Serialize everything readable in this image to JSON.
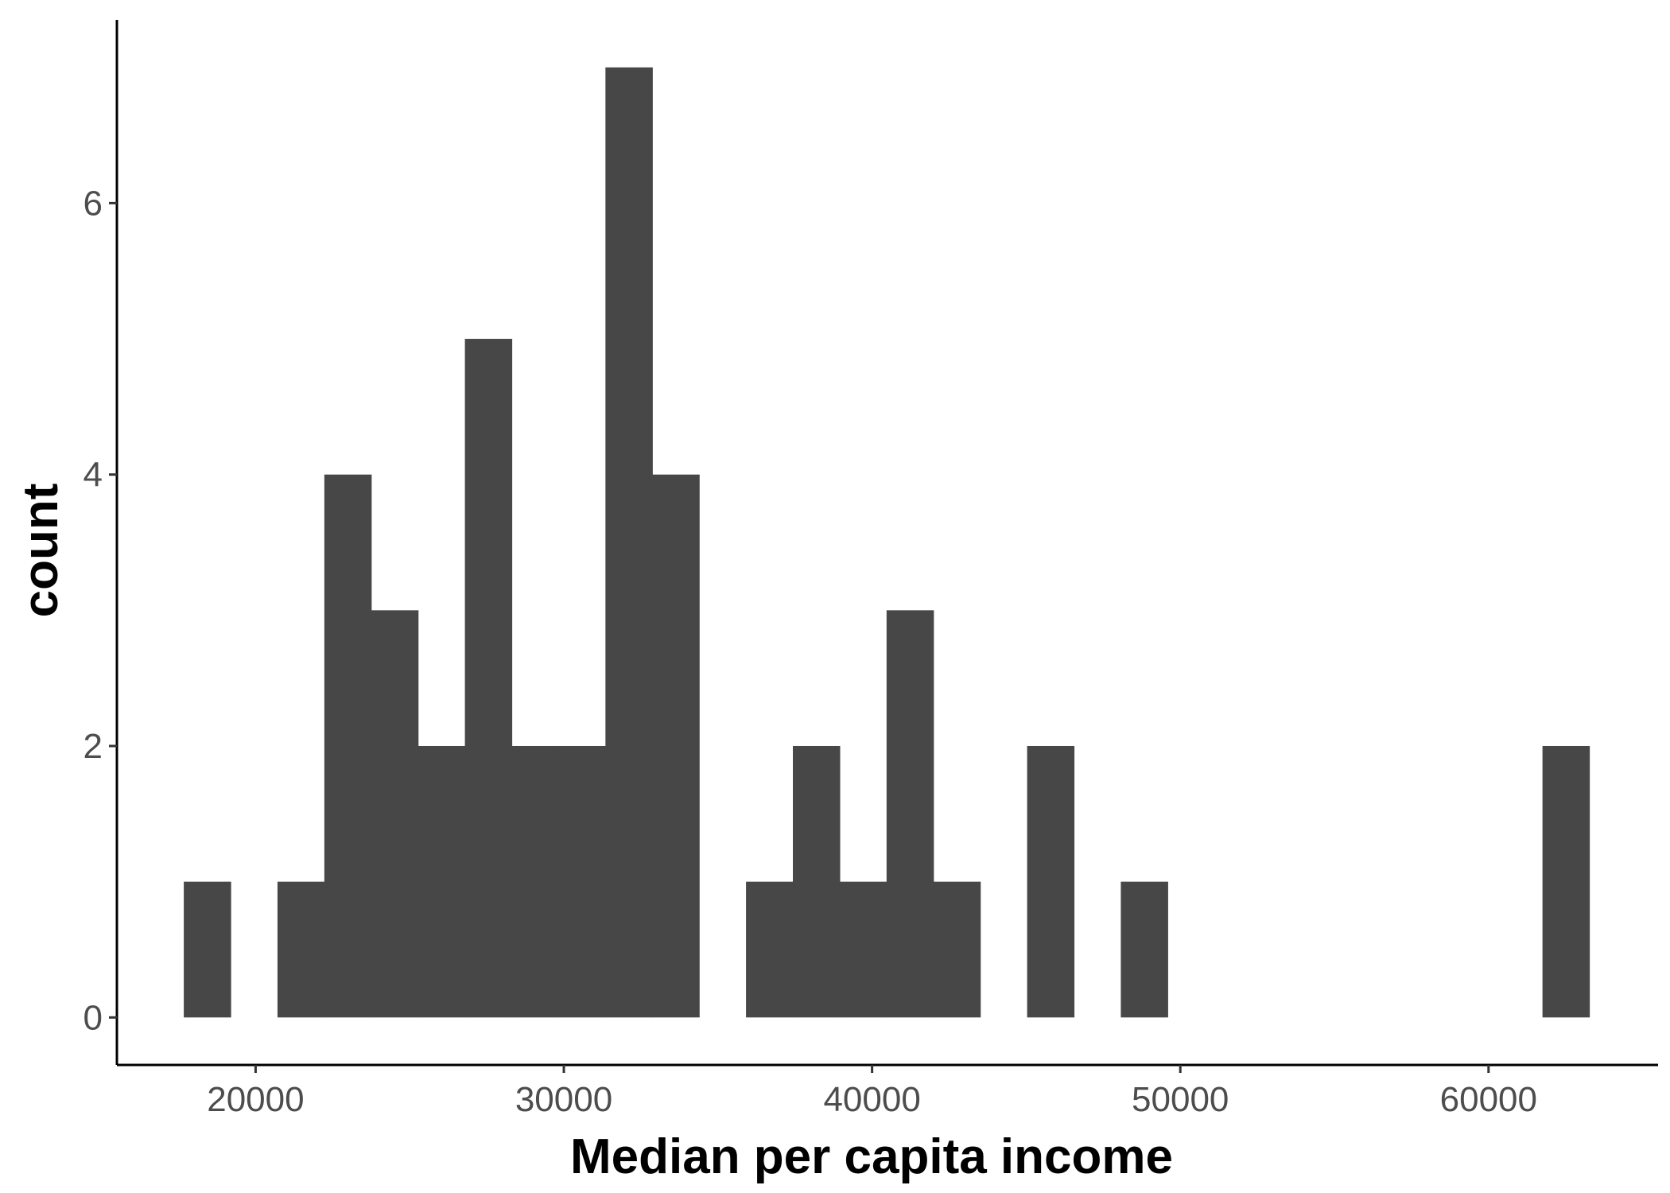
{
  "chart_data": {
    "type": "bar",
    "subtype": "histogram",
    "title": "",
    "xlabel": "Median per capita income",
    "ylabel": "count",
    "xlim": [
      15500,
      65500
    ],
    "ylim": [
      -0.35,
      7.35
    ],
    "x_ticks": [
      20000,
      30000,
      40000,
      50000,
      60000
    ],
    "x_tick_labels": [
      "20000",
      "30000",
      "40000",
      "50000",
      "60000"
    ],
    "y_ticks": [
      0,
      2,
      4,
      6
    ],
    "y_tick_labels": [
      "0",
      "2",
      "4",
      "6"
    ],
    "bin_width": 1520,
    "bins": [
      {
        "center": 18430,
        "count": 1
      },
      {
        "center": 19950,
        "count": 0
      },
      {
        "center": 21470,
        "count": 1
      },
      {
        "center": 22990,
        "count": 4
      },
      {
        "center": 24510,
        "count": 3
      },
      {
        "center": 26030,
        "count": 2
      },
      {
        "center": 27550,
        "count": 5
      },
      {
        "center": 29070,
        "count": 2
      },
      {
        "center": 30590,
        "count": 2
      },
      {
        "center": 32110,
        "count": 7
      },
      {
        "center": 33630,
        "count": 4
      },
      {
        "center": 35150,
        "count": 0
      },
      {
        "center": 36670,
        "count": 1
      },
      {
        "center": 38190,
        "count": 2
      },
      {
        "center": 39710,
        "count": 1
      },
      {
        "center": 41230,
        "count": 3
      },
      {
        "center": 42750,
        "count": 1
      },
      {
        "center": 44270,
        "count": 0
      },
      {
        "center": 45790,
        "count": 2
      },
      {
        "center": 47310,
        "count": 0
      },
      {
        "center": 48830,
        "count": 1
      },
      {
        "center": 50350,
        "count": 0
      },
      {
        "center": 51870,
        "count": 0
      },
      {
        "center": 53390,
        "count": 0
      },
      {
        "center": 54910,
        "count": 0
      },
      {
        "center": 56430,
        "count": 0
      },
      {
        "center": 57950,
        "count": 0
      },
      {
        "center": 59470,
        "count": 0
      },
      {
        "center": 60990,
        "count": 0
      },
      {
        "center": 62510,
        "count": 2
      }
    ],
    "bar_color": "#474747",
    "grid": false,
    "legend": "none"
  }
}
